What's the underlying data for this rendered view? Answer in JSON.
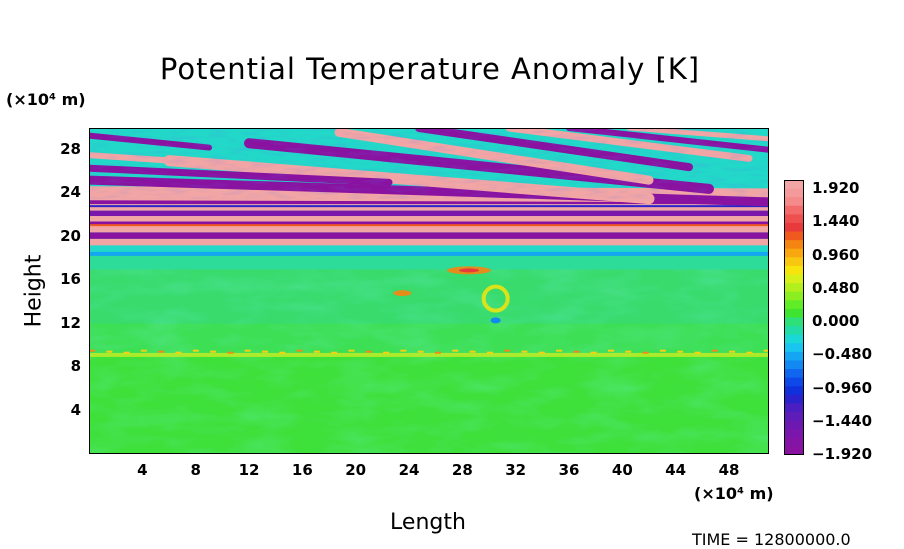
{
  "chart_data": {
    "type": "heatmap",
    "title": "Potential Temperature Anomaly [K]",
    "xlabel": "Length",
    "ylabel": "Height",
    "x_unit": "(×10⁴ m)",
    "y_unit": "(×10⁴ m)",
    "x_ticks": [
      "4",
      "8",
      "12",
      "16",
      "20",
      "24",
      "28",
      "32",
      "36",
      "40",
      "44",
      "48"
    ],
    "y_ticks": [
      "4",
      "8",
      "12",
      "16",
      "20",
      "24",
      "28"
    ],
    "xlim": [
      0,
      51
    ],
    "ylim": [
      0,
      30
    ],
    "colorbar": {
      "labels": [
        "1.920",
        "1.440",
        "0.960",
        "0.480",
        "0.000",
        "−0.480",
        "−0.960",
        "−1.440",
        "−1.920"
      ],
      "range": [
        -1.92,
        1.92
      ]
    },
    "footer": "TIME = 12800000.0"
  }
}
